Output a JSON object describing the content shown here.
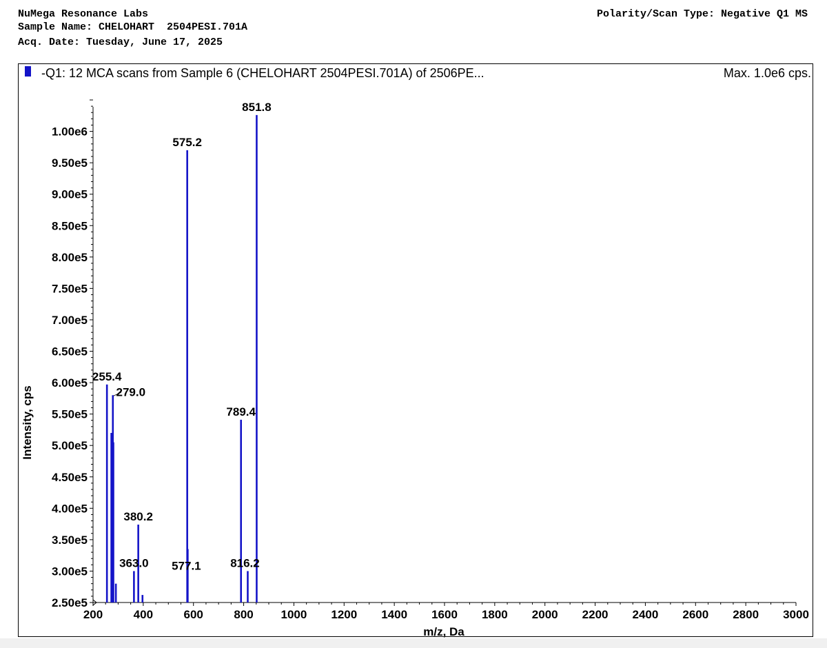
{
  "header": {
    "lab": "NuMega Resonance Labs",
    "sample": "Sample Name: CHELOHART  2504PESI.701A",
    "date": "Acq. Date: Tuesday, June 17, 2025",
    "polarity": "Polarity/Scan Type: Negative Q1 MS"
  },
  "colors": {
    "series": "#1414c8",
    "text": "#000000"
  },
  "chart_data": {
    "type": "bar",
    "title": "-Q1: 12 MCA scans from Sample 6 (CHELOHART  2504PESI.701A) of 2506PE...",
    "max_label": "Max. 1.0e6 cps.",
    "xlabel": "m/z, Da",
    "ylabel": "Intensity, cps",
    "xlim": [
      200,
      3000
    ],
    "ylim": [
      250000,
      1050000
    ],
    "xticks": [
      {
        "v": 200,
        "label": "200"
      },
      {
        "v": 400,
        "label": "400"
      },
      {
        "v": 600,
        "label": "600"
      },
      {
        "v": 800,
        "label": "800"
      },
      {
        "v": 1000,
        "label": "1000"
      },
      {
        "v": 1200,
        "label": "1200"
      },
      {
        "v": 1400,
        "label": "1400"
      },
      {
        "v": 1600,
        "label": "1600"
      },
      {
        "v": 1800,
        "label": "1800"
      },
      {
        "v": 2000,
        "label": "2000"
      },
      {
        "v": 2200,
        "label": "2200"
      },
      {
        "v": 2400,
        "label": "2400"
      },
      {
        "v": 2600,
        "label": "2600"
      },
      {
        "v": 2800,
        "label": "2800"
      },
      {
        "v": 3000,
        "label": "3000"
      }
    ],
    "yticks": [
      {
        "v": 250000,
        "label": "2.50e5"
      },
      {
        "v": 300000,
        "label": "3.00e5"
      },
      {
        "v": 350000,
        "label": "3.50e5"
      },
      {
        "v": 400000,
        "label": "4.00e5"
      },
      {
        "v": 450000,
        "label": "4.50e5"
      },
      {
        "v": 500000,
        "label": "5.00e5"
      },
      {
        "v": 550000,
        "label": "5.50e5"
      },
      {
        "v": 600000,
        "label": "6.00e5"
      },
      {
        "v": 650000,
        "label": "6.50e5"
      },
      {
        "v": 700000,
        "label": "7.00e5"
      },
      {
        "v": 750000,
        "label": "7.50e5"
      },
      {
        "v": 800000,
        "label": "8.00e5"
      },
      {
        "v": 850000,
        "label": "8.50e5"
      },
      {
        "v": 900000,
        "label": "9.00e5"
      },
      {
        "v": 950000,
        "label": "9.50e5"
      },
      {
        "v": 1000000,
        "label": "1.00e6"
      }
    ],
    "peaks": [
      {
        "mz": 255.4,
        "intensity": 597000,
        "label": "255.4"
      },
      {
        "mz": 273.0,
        "intensity": 520000
      },
      {
        "mz": 279.0,
        "intensity": 580000,
        "label": "279.0"
      },
      {
        "mz": 281.0,
        "intensity": 505000
      },
      {
        "mz": 291.0,
        "intensity": 280000
      },
      {
        "mz": 363.0,
        "intensity": 300000,
        "label": "363.0"
      },
      {
        "mz": 380.2,
        "intensity": 374000,
        "label": "380.2"
      },
      {
        "mz": 397.0,
        "intensity": 262000
      },
      {
        "mz": 575.2,
        "intensity": 970000,
        "label": "575.2"
      },
      {
        "mz": 577.1,
        "intensity": 335000,
        "label": "577.1"
      },
      {
        "mz": 789.4,
        "intensity": 541000,
        "label": "789.4"
      },
      {
        "mz": 816.2,
        "intensity": 300000,
        "label": "816.2"
      },
      {
        "mz": 851.8,
        "intensity": 1026000,
        "label": "851.8"
      }
    ]
  }
}
